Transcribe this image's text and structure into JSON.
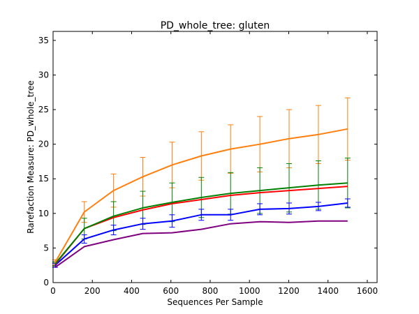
{
  "chart_data": {
    "type": "line",
    "title": "PD_whole_tree: gluten",
    "xlabel": "Sequences Per Sample",
    "ylabel": "Rarefaction Measure: PD_whole_tree",
    "xlim": [
      0,
      1650
    ],
    "ylim": [
      0,
      36.3
    ],
    "xticks": [
      0,
      200,
      400,
      600,
      800,
      1000,
      1200,
      1400,
      1600
    ],
    "yticks": [
      0,
      5,
      10,
      15,
      20,
      25,
      30,
      35
    ],
    "grid": false,
    "x": [
      10,
      159,
      308,
      457,
      606,
      755,
      904,
      1053,
      1202,
      1351,
      1500
    ],
    "series": [
      {
        "color": "#ff7f0e",
        "values": [
          2.9,
          10.2,
          13.3,
          15.3,
          17.0,
          18.3,
          19.3,
          20.0,
          20.8,
          21.4,
          22.2
        ],
        "err": [
          0.4,
          1.5,
          2.4,
          2.8,
          3.3,
          3.5,
          3.5,
          4.0,
          4.2,
          4.2,
          4.5
        ]
      },
      {
        "color": "#008000",
        "values": [
          2.7,
          7.8,
          9.6,
          10.8,
          11.6,
          12.3,
          12.9,
          13.3,
          13.7,
          14.1,
          14.4
        ],
        "err": [
          0.3,
          1.5,
          2.1,
          2.4,
          2.8,
          2.9,
          3.0,
          3.3,
          3.5,
          3.5,
          3.6
        ]
      },
      {
        "color": "#ff0000",
        "values": [
          2.6,
          7.8,
          9.4,
          10.5,
          11.4,
          12.0,
          12.6,
          13.0,
          13.3,
          13.6,
          13.9
        ],
        "err": []
      },
      {
        "color": "#0000ff",
        "values": [
          2.5,
          6.3,
          7.6,
          8.5,
          8.9,
          9.8,
          9.8,
          10.6,
          10.7,
          11.0,
          11.5
        ],
        "err": [
          0.3,
          0.6,
          0.7,
          0.8,
          0.9,
          0.8,
          0.8,
          0.8,
          0.8,
          0.6,
          0.6
        ]
      },
      {
        "color": "#800080",
        "values": [
          2.2,
          5.2,
          6.2,
          7.1,
          7.2,
          7.7,
          8.5,
          8.8,
          8.7,
          8.9,
          8.9
        ],
        "err": []
      }
    ]
  }
}
